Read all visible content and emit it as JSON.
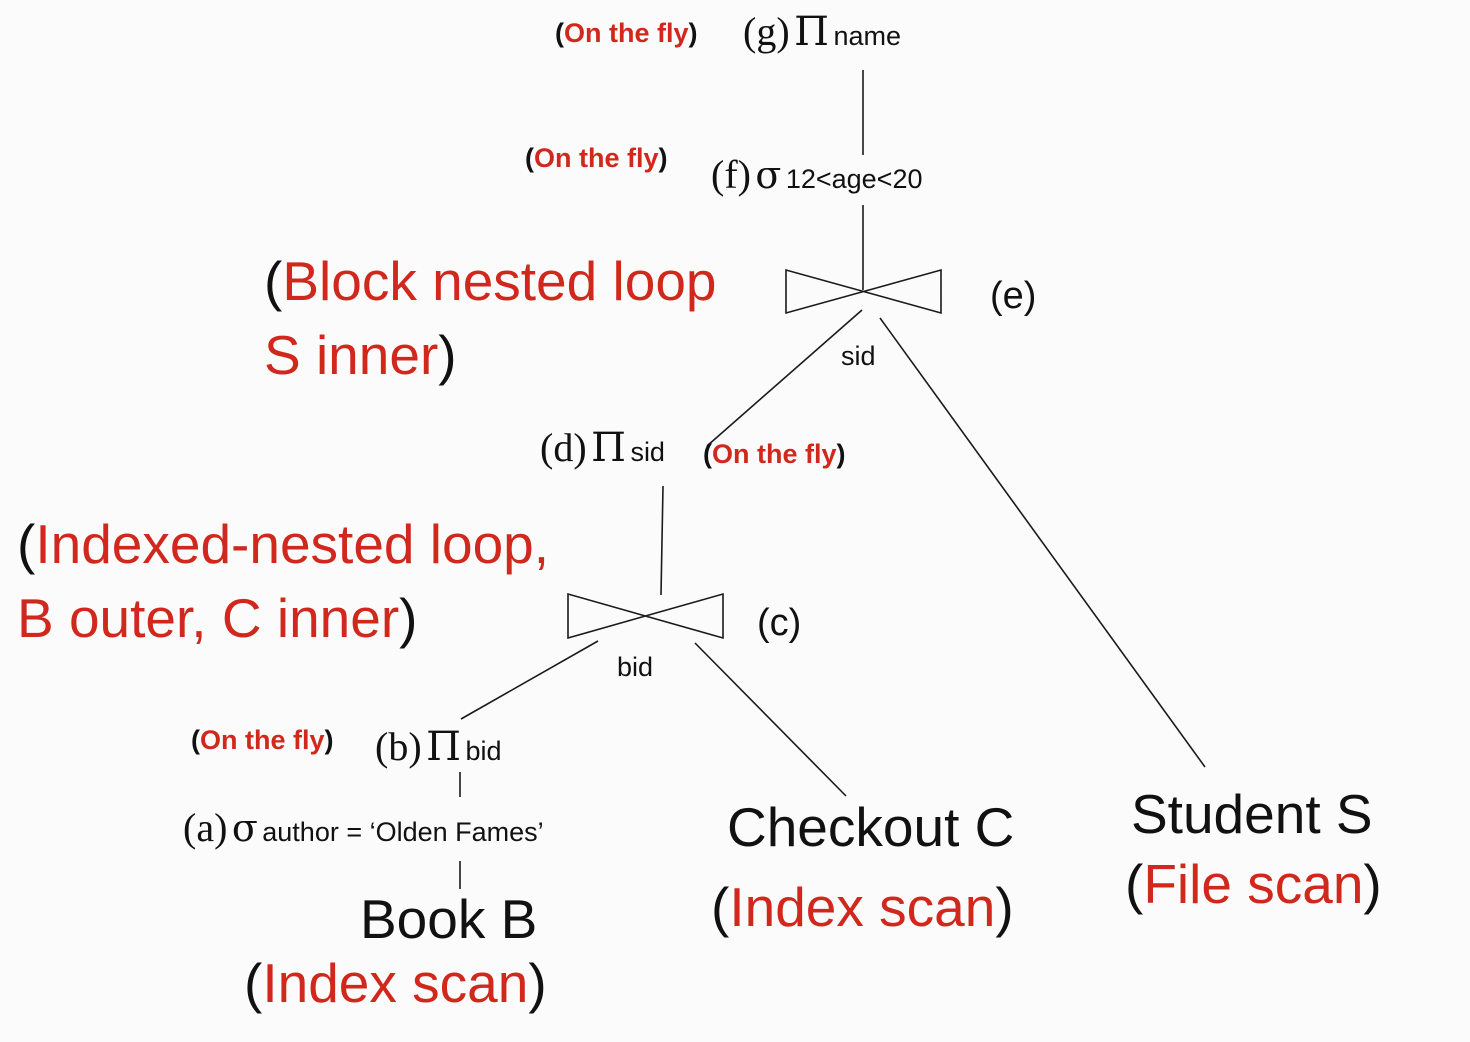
{
  "colors": {
    "annotation": "#d0281c",
    "text": "#111111",
    "line": "#1a1a1a",
    "background": "#fbfbfb"
  },
  "symbols": {
    "project": "Π",
    "select": "σ"
  },
  "nodes": {
    "g": {
      "id": "(g)",
      "sub": "name",
      "method": "On the fly"
    },
    "f": {
      "id": "(f)",
      "sub": "12<age<20",
      "method": "On the fly"
    },
    "e": {
      "id": "(e)",
      "join_attr": "sid",
      "method_line1": "Block nested loop",
      "method_line2": "S inner"
    },
    "d": {
      "id": "(d)",
      "sub": "sid",
      "method": "On the fly"
    },
    "c": {
      "id": "(c)",
      "join_attr": "bid",
      "method_line1": "Indexed-nested loop,",
      "method_line2": "B outer, C inner"
    },
    "b": {
      "id": "(b)",
      "sub": "bid",
      "method": "On the fly"
    },
    "a": {
      "id": "(a)",
      "sub": "author = ‘Olden Fames’"
    }
  },
  "relations": {
    "book": {
      "name": "Book B",
      "access": "Index scan"
    },
    "checkout": {
      "name": "Checkout C",
      "access": "Index scan"
    },
    "student": {
      "name": "Student S",
      "access": "File scan"
    }
  }
}
